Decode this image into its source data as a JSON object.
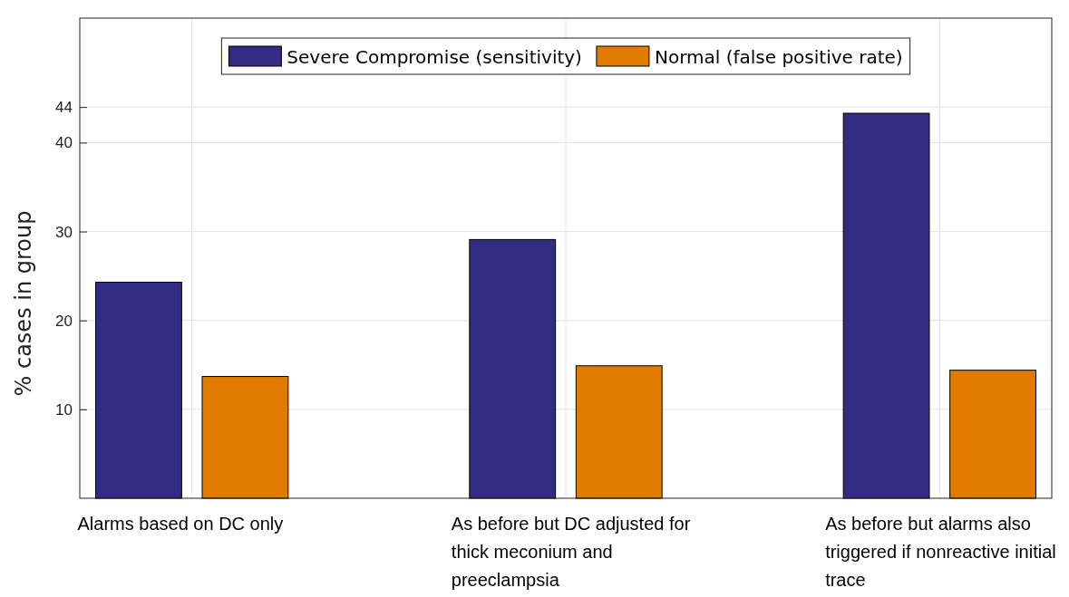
{
  "chart_data": {
    "type": "bar",
    "ylabel": "% cases in group",
    "categories": [
      "Alarms based on DC only",
      "As before but DC adjusted for thick meconium and preeclampsia",
      "As before but alarms also triggered if nonreactive initial trace"
    ],
    "series": [
      {
        "name": "Severe Compromise (sensitivity)",
        "color": "#332a83",
        "values": [
          24.3,
          29.1,
          43.3
        ]
      },
      {
        "name": "Normal (false positive rate)",
        "color": "#e07b00",
        "values": [
          13.7,
          14.9,
          14.4
        ]
      }
    ],
    "ylim": [
      0,
      54
    ],
    "yticks": [
      10,
      20,
      30,
      40,
      44
    ],
    "grid": true,
    "legend": "top"
  }
}
